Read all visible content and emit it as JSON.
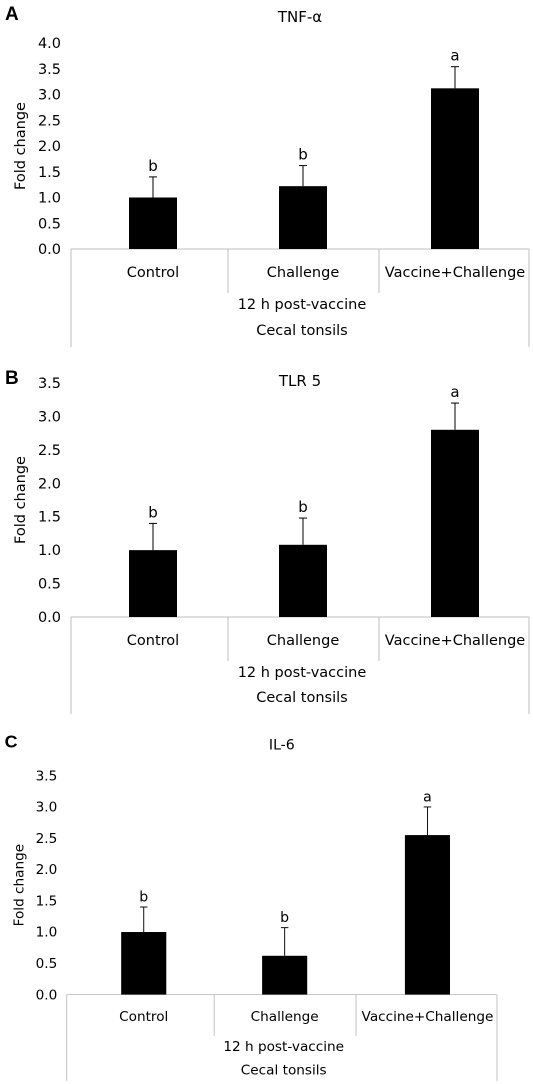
{
  "chart_data": [
    {
      "type": "bar",
      "panel_label": "A",
      "title": "TNF-α",
      "ylabel": "Fold change",
      "xlabel_lines": [
        "12 h post-vaccine",
        "Cecal tonsils"
      ],
      "categories": [
        "Control",
        "Challenge",
        "Vaccine+Challenge"
      ],
      "values": [
        1.0,
        1.22,
        3.12
      ],
      "errors": [
        0.4,
        0.4,
        0.42
      ],
      "significance": [
        "b",
        "b",
        "a"
      ],
      "ylim": [
        0,
        4
      ],
      "yticks": [
        "0.0",
        "0.5",
        "1.0",
        "1.5",
        "2.0",
        "2.5",
        "3.0",
        "3.5",
        "4.0"
      ],
      "bar_color": "#000000"
    },
    {
      "type": "bar",
      "panel_label": "B",
      "title": "TLR 5",
      "ylabel": "Fold change",
      "xlabel_lines": [
        "12 h post-vaccine",
        "Cecal tonsils"
      ],
      "categories": [
        "Control",
        "Challenge",
        "Vaccine+Challenge"
      ],
      "values": [
        1.0,
        1.08,
        2.8
      ],
      "errors": [
        0.4,
        0.4,
        0.4
      ],
      "significance": [
        "b",
        "b",
        "a"
      ],
      "ylim": [
        0,
        3.5
      ],
      "yticks": [
        "0.0",
        "0.5",
        "1.0",
        "1.5",
        "2.0",
        "2.5",
        "3.0",
        "3.5"
      ],
      "bar_color": "#000000"
    },
    {
      "type": "bar",
      "panel_label": "C",
      "title": "IL-6",
      "ylabel": "Fold change",
      "xlabel_lines": [
        "12 h post-vaccine",
        "Cecal tonsils"
      ],
      "categories": [
        "Control",
        "Challenge",
        "Vaccine+Challenge"
      ],
      "values": [
        1.0,
        0.62,
        2.55
      ],
      "errors": [
        0.4,
        0.45,
        0.45
      ],
      "significance": [
        "b",
        "b",
        "a"
      ],
      "ylim": [
        0,
        3.5
      ],
      "yticks": [
        "0.0",
        "0.5",
        "1.0",
        "1.5",
        "2.0",
        "2.5",
        "3.0",
        "3.5"
      ],
      "bar_color": "#000000"
    }
  ]
}
